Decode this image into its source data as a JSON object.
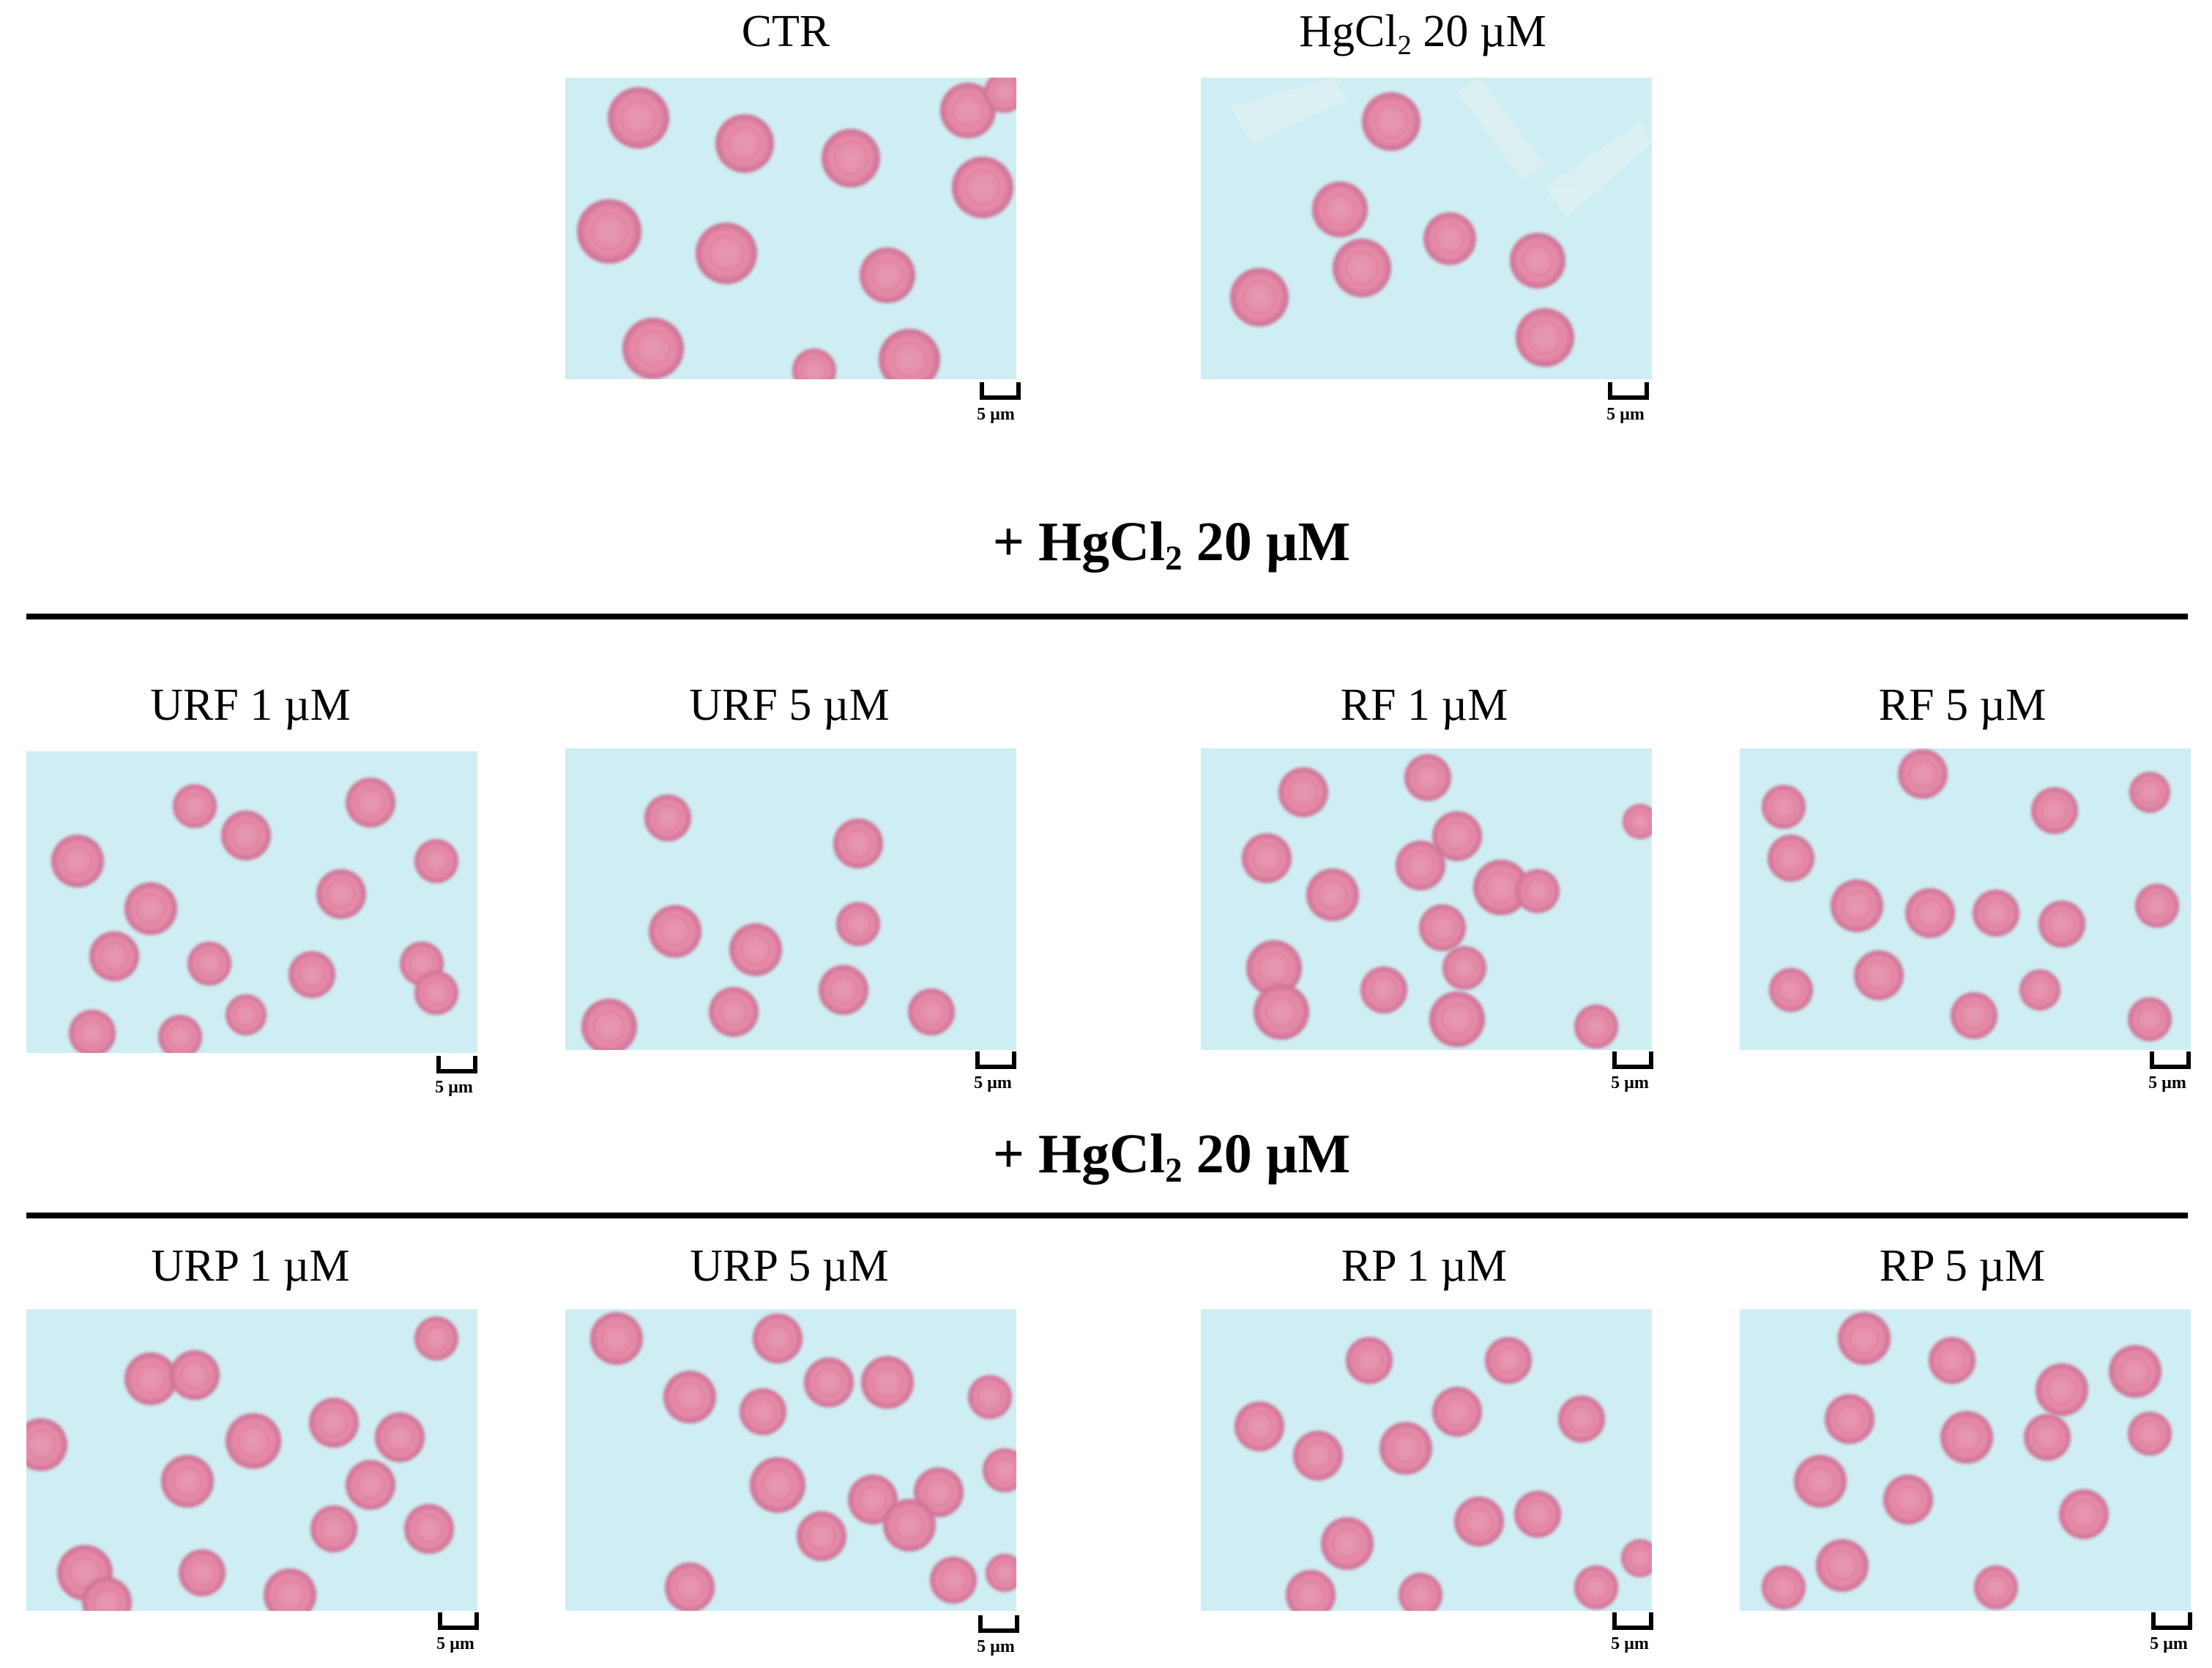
{
  "panels": [
    {
      "id": "ctr",
      "label": "CTR"
    },
    {
      "id": "hgcl2",
      "label_main": "HgCl",
      "label_sub": "2",
      "label_rest": " 20 µM"
    },
    {
      "id": "urf1",
      "label": "URF 1 µM"
    },
    {
      "id": "urf5",
      "label": "URF 5 µM"
    },
    {
      "id": "rf1",
      "label": "RF 1 µM"
    },
    {
      "id": "rf5",
      "label": "RF 5 µM"
    },
    {
      "id": "urp1",
      "label": "URP 1 µM"
    },
    {
      "id": "urp5",
      "label": "URP 5 µM"
    },
    {
      "id": "rp1",
      "label": "RP 1 µM"
    },
    {
      "id": "rp5",
      "label": "RP 5 µM"
    }
  ],
  "group_headings": [
    {
      "prefix": "+ HgCl",
      "sub": "2",
      "suffix": " 20 µM"
    },
    {
      "prefix": "+ HgCl",
      "sub": "2",
      "suffix": " 20 µM"
    }
  ],
  "scale_bar": {
    "label": "5 µm"
  },
  "colors": {
    "background": "#cfeef3",
    "cell": "#e88aa8",
    "cell_rim": "#c96d92"
  }
}
